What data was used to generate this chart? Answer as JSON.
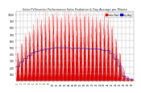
{
  "title": "Solar PV/Inverter Performance Solar Radiation & Day Average per Minute",
  "background_color": "#ffffff",
  "plot_bg_color": "#ffffff",
  "grid_color": "#aaaaaa",
  "bar_color": "#dd0000",
  "avg_line_color": "#0000cc",
  "top_line_color": "#ff6666",
  "ylabel": "W/m2",
  "ylim": [
    0,
    1050
  ],
  "yticks": [
    100,
    200,
    300,
    400,
    500,
    600,
    700,
    800,
    900,
    1000
  ],
  "num_days": 30,
  "samples_per_day": 120,
  "legend_labels": [
    "Solar Rad.",
    "Day Avg"
  ],
  "legend_colors": [
    "#dd0000",
    "#0000cc"
  ],
  "day_peaks": [
    380,
    520,
    620,
    700,
    780,
    820,
    850,
    870,
    880,
    900,
    910,
    920,
    920,
    915,
    905,
    900,
    895,
    890,
    880,
    875,
    870,
    860,
    850,
    830,
    750,
    600,
    400,
    120,
    50,
    30
  ],
  "cloudy_days": [
    27,
    28,
    29
  ]
}
